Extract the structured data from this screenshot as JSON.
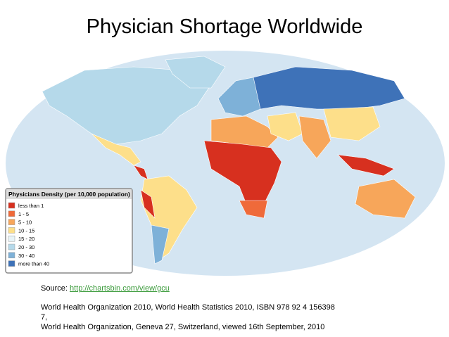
{
  "title": "Physician Shortage Worldwide",
  "legend": {
    "title": "Physicians Density (per 10,000 population)",
    "items": [
      {
        "label": "less than 1",
        "color": "#d7301f"
      },
      {
        "label": "1 - 5",
        "color": "#ef6a3a"
      },
      {
        "label": "5 - 10",
        "color": "#f7a65a"
      },
      {
        "label": "10 - 15",
        "color": "#fddf8a"
      },
      {
        "label": "15 - 20",
        "color": "#e8f4f8"
      },
      {
        "label": "20 - 30",
        "color": "#b5d9ea"
      },
      {
        "label": "30 - 40",
        "color": "#7eb1d8"
      },
      {
        "label": "more than 40",
        "color": "#3e72b8"
      }
    ]
  },
  "source": {
    "label": "Source:",
    "link": "http://chartsbin.com/view/gcu"
  },
  "references": [
    "World Health Organization 2010, World Health Statistics 2010, ISBN 978 92 4 156398",
    "7,",
    "World Health Organization, Geneva 27, Switzerland, viewed 16th September, 2010"
  ]
}
